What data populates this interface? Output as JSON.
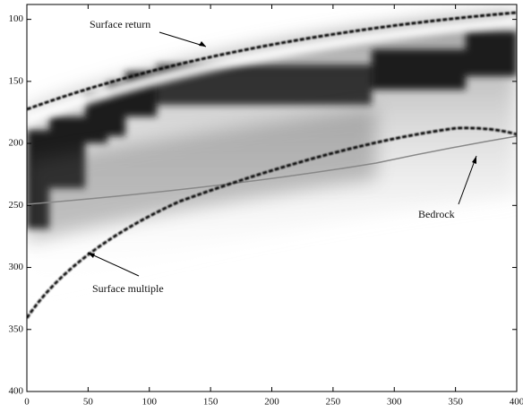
{
  "chart_data": {
    "type": "radargram",
    "annotations": [
      "Surface return",
      "Bedrock",
      "Surface multiple"
    ],
    "xlim": [
      0,
      400
    ],
    "xticks": [
      0,
      50,
      100,
      150,
      200,
      250,
      300,
      350,
      400
    ],
    "ylim": [
      400,
      88
    ],
    "yticks": [
      100,
      150,
      200,
      250,
      300,
      350,
      400
    ]
  }
}
